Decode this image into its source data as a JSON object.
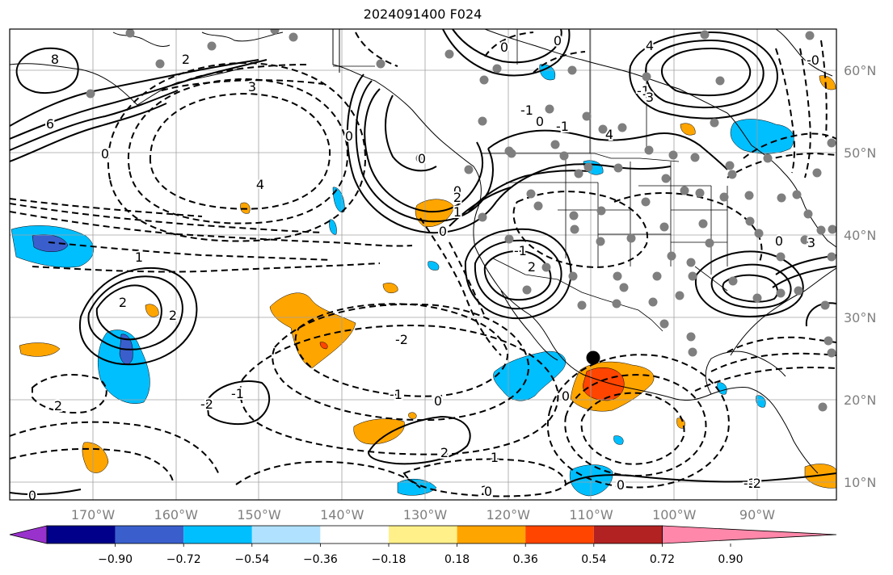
{
  "title": "2024091400 F024",
  "map": {
    "lon_labels": [
      "170°W",
      "160°W",
      "150°W",
      "140°W",
      "130°W",
      "120°W",
      "110°W",
      "100°W",
      "90°W"
    ],
    "lat_labels": [
      "60°N",
      "50°N",
      "40°N",
      "30°N",
      "20°N",
      "10°N"
    ],
    "contour_labels": [
      "8",
      "6",
      "2",
      "3",
      "0",
      "2",
      "2",
      "4",
      "0",
      "1",
      "-2",
      "-1",
      "0",
      "2",
      "1",
      "-1",
      "-2",
      "0",
      "0",
      "-1",
      "0",
      "0",
      "-1",
      "0",
      "1",
      "2",
      "0",
      "-1",
      "0",
      "4",
      "-0",
      "3",
      "-2",
      "2",
      "0",
      "2",
      "2",
      "-1",
      "3",
      "4",
      "0",
      "-2",
      "0",
      "0"
    ],
    "station_marker": "black-dot"
  },
  "colorbar": {
    "tick_labels": [
      "−0.90",
      "−0.72",
      "−0.54",
      "−0.36",
      "−0.18",
      "0.18",
      "0.36",
      "0.54",
      "0.72",
      "0.90"
    ],
    "colors": [
      "#9932cc",
      "#00008b",
      "#3a5fcd",
      "#00bfff",
      "#b0e2ff",
      "#ffffff",
      "#fff08a",
      "#ffa500",
      "#ff4500",
      "#b22222",
      "#ff88aa"
    ]
  }
}
